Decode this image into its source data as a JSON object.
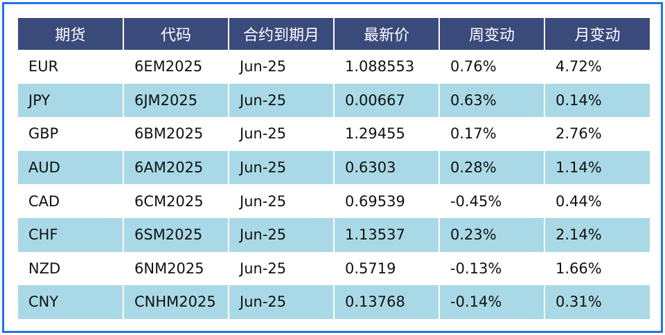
{
  "table": {
    "headers": [
      "期货",
      "代码",
      "合约到期月",
      "最新价",
      "周变动",
      "月变动"
    ],
    "rows": [
      {
        "currency": "EUR",
        "code": "6EM2025",
        "expiry": "Jun-25",
        "last": "1.088553",
        "week": "0.76%",
        "month": "4.72%",
        "week_dir": "pos",
        "month_dir": "pos"
      },
      {
        "currency": "JPY",
        "code": "6JM2025",
        "expiry": "Jun-25",
        "last": "0.00667",
        "week": "0.63%",
        "month": "0.14%",
        "week_dir": "pos",
        "month_dir": "pos"
      },
      {
        "currency": "GBP",
        "code": "6BM2025",
        "expiry": "Jun-25",
        "last": "1.29455",
        "week": "0.17%",
        "month": "2.76%",
        "week_dir": "pos",
        "month_dir": "pos"
      },
      {
        "currency": "AUD",
        "code": "6AM2025",
        "expiry": "Jun-25",
        "last": "0.6303",
        "week": "0.28%",
        "month": "1.14%",
        "week_dir": "pos",
        "month_dir": "pos"
      },
      {
        "currency": "CAD",
        "code": "6CM2025",
        "expiry": "Jun-25",
        "last": "0.69539",
        "week": "-0.45%",
        "month": "0.44%",
        "week_dir": "neg",
        "month_dir": "pos"
      },
      {
        "currency": "CHF",
        "code": "6SM2025",
        "expiry": "Jun-25",
        "last": "1.13537",
        "week": "0.23%",
        "month": "2.14%",
        "week_dir": "pos",
        "month_dir": "pos"
      },
      {
        "currency": "NZD",
        "code": "6NM2025",
        "expiry": "Jun-25",
        "last": "0.5719",
        "week": "-0.13%",
        "month": "1.66%",
        "week_dir": "neg",
        "month_dir": "pos"
      },
      {
        "currency": "CNY",
        "code": "CNHM2025",
        "expiry": "Jun-25",
        "last": "0.13768",
        "week": "-0.14%",
        "month": "0.31%",
        "week_dir": "neg",
        "month_dir": "pos"
      }
    ]
  },
  "colors": {
    "header_bg": "#3a4a7b",
    "band_bg": "#a9d9e6",
    "frame_border": "#1f73e6",
    "positive": "#e3141b",
    "negative": "#1a9a1a"
  }
}
